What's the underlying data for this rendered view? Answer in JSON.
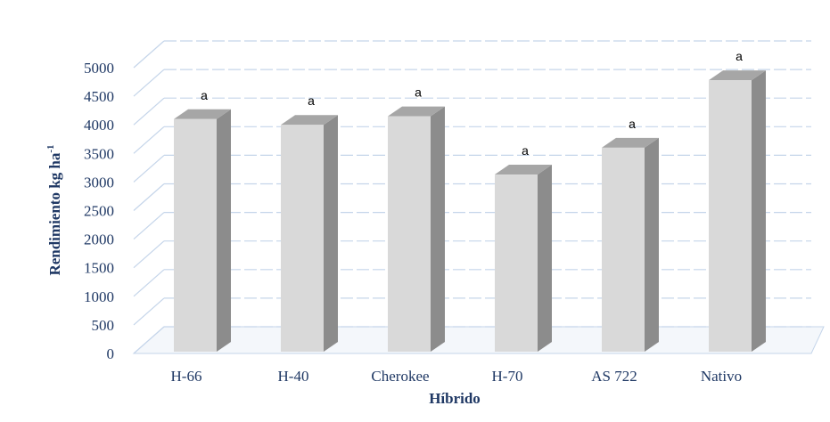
{
  "chart_data": {
    "type": "bar",
    "categories": [
      "H-66",
      "H-40",
      "Cherokee",
      "H-70",
      "AS 722",
      "Nativo"
    ],
    "values": [
      4100,
      4000,
      4150,
      3130,
      3600,
      4780
    ],
    "significance": [
      "a",
      "a",
      "a",
      "a",
      "a",
      "a"
    ],
    "title": "",
    "xlabel": "Híbrido",
    "ylabel": "Rendimiento kg ha",
    "ylabel_superscript": "-1",
    "ylim": [
      0,
      5000
    ],
    "yticks": [
      0,
      500,
      1000,
      1500,
      2000,
      2500,
      3000,
      3500,
      4000,
      4500,
      5000
    ],
    "grid": true,
    "style": "3d-column",
    "colors": {
      "bar_front": "#d9d9d9",
      "bar_side": "#8c8c8c",
      "bar_top": "#a6a6a6",
      "grid": "#c5d5ea",
      "axis_text": "#1f3864"
    }
  }
}
